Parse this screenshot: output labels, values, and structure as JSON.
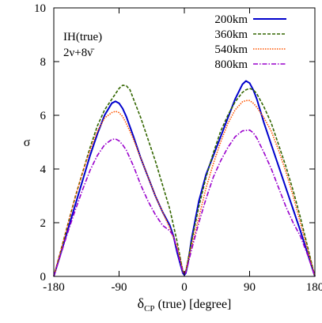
{
  "chart_data": {
    "type": "line",
    "xlabel_main": "δ",
    "xlabel_sub": "CP",
    "xlabel_rest": " (true) [degree]",
    "ylabel": "σ",
    "xlim": [
      -180,
      180
    ],
    "ylim": [
      0,
      10
    ],
    "xticks": [
      -180,
      -90,
      0,
      90,
      180
    ],
    "yticks": [
      0,
      2,
      4,
      6,
      8,
      10
    ],
    "legend_position": "top-right",
    "annotations": [
      "IH(true)",
      "2ν+8ν̄"
    ],
    "series": [
      {
        "name": "200km",
        "color": "#0000cc",
        "style": "solid",
        "x": [
          -180,
          -170,
          -160,
          -150,
          -140,
          -130,
          -120,
          -110,
          -100,
          -95,
          -90,
          -85,
          -80,
          -70,
          -60,
          -50,
          -40,
          -30,
          -20,
          -15,
          -10,
          -5,
          -2,
          0,
          2,
          5,
          10,
          15,
          20,
          30,
          40,
          50,
          60,
          70,
          80,
          85,
          90,
          95,
          100,
          110,
          120,
          130,
          140,
          150,
          160,
          170,
          180
        ],
        "y": [
          0,
          0.9,
          1.8,
          2.7,
          3.6,
          4.5,
          5.3,
          6.0,
          6.45,
          6.52,
          6.45,
          6.25,
          5.95,
          5.2,
          4.4,
          3.7,
          3.0,
          2.4,
          1.9,
          1.5,
          0.9,
          0.4,
          0.12,
          0.05,
          0.12,
          0.5,
          1.4,
          2.1,
          2.8,
          3.8,
          4.5,
          5.2,
          5.9,
          6.6,
          7.15,
          7.28,
          7.2,
          6.95,
          6.6,
          5.7,
          4.9,
          4.1,
          3.3,
          2.5,
          1.7,
          0.85,
          0
        ]
      },
      {
        "name": "360km",
        "color": "#336600",
        "style": "dashed",
        "x": [
          -180,
          -170,
          -160,
          -150,
          -140,
          -130,
          -120,
          -110,
          -100,
          -90,
          -85,
          -80,
          -75,
          -70,
          -60,
          -50,
          -40,
          -30,
          -20,
          -10,
          -5,
          -2,
          0,
          2,
          5,
          10,
          20,
          30,
          40,
          50,
          60,
          70,
          80,
          85,
          90,
          95,
          100,
          110,
          120,
          130,
          140,
          150,
          160,
          170,
          180
        ],
        "y": [
          0,
          1.0,
          2.0,
          3.0,
          3.9,
          4.8,
          5.6,
          6.2,
          6.6,
          7.0,
          7.12,
          7.1,
          6.95,
          6.6,
          5.9,
          5.1,
          4.3,
          3.4,
          2.5,
          1.3,
          0.6,
          0.2,
          0.1,
          0.2,
          0.6,
          1.3,
          2.6,
          3.7,
          4.6,
          5.4,
          6.0,
          6.5,
          6.85,
          6.95,
          7.0,
          6.95,
          6.8,
          6.3,
          5.7,
          4.9,
          4.1,
          3.2,
          2.2,
          1.1,
          0
        ]
      },
      {
        "name": "540km",
        "color": "#ff5500",
        "style": "dotted",
        "x": [
          -180,
          -170,
          -160,
          -150,
          -140,
          -130,
          -120,
          -110,
          -100,
          -95,
          -90,
          -85,
          -80,
          -70,
          -60,
          -50,
          -40,
          -30,
          -20,
          -10,
          -5,
          -2,
          0,
          2,
          5,
          10,
          20,
          30,
          40,
          50,
          60,
          70,
          80,
          85,
          90,
          95,
          100,
          110,
          120,
          130,
          140,
          150,
          160,
          170,
          180
        ],
        "y": [
          0,
          1.0,
          2.0,
          3.0,
          3.9,
          4.7,
          5.4,
          5.9,
          6.1,
          6.15,
          6.1,
          5.95,
          5.7,
          5.1,
          4.4,
          3.7,
          3.0,
          2.4,
          1.8,
          1.1,
          0.55,
          0.2,
          0.1,
          0.2,
          0.55,
          1.1,
          2.2,
          3.3,
          4.2,
          5.0,
          5.7,
          6.2,
          6.5,
          6.55,
          6.55,
          6.45,
          6.3,
          5.9,
          5.4,
          4.7,
          3.9,
          3.0,
          2.0,
          1.0,
          0
        ]
      },
      {
        "name": "800km",
        "color": "#9900cc",
        "style": "dashdot",
        "x": [
          -180,
          -170,
          -160,
          -150,
          -140,
          -130,
          -120,
          -110,
          -100,
          -95,
          -90,
          -85,
          -80,
          -70,
          -60,
          -50,
          -40,
          -30,
          -20,
          -15,
          -10,
          -5,
          -2,
          0,
          2,
          5,
          10,
          20,
          30,
          40,
          50,
          60,
          70,
          80,
          90,
          95,
          100,
          110,
          120,
          130,
          140,
          150,
          160,
          170,
          180
        ],
        "y": [
          0,
          0.85,
          1.7,
          2.5,
          3.25,
          3.95,
          4.5,
          4.9,
          5.1,
          5.12,
          5.05,
          4.9,
          4.7,
          4.1,
          3.4,
          2.8,
          2.3,
          1.9,
          1.7,
          1.5,
          1.0,
          0.45,
          0.15,
          0.08,
          0.15,
          0.45,
          1.0,
          2.0,
          2.9,
          3.7,
          4.3,
          4.8,
          5.2,
          5.42,
          5.45,
          5.35,
          5.15,
          4.6,
          4.0,
          3.3,
          2.6,
          2.0,
          1.5,
          0.8,
          0
        ]
      }
    ]
  }
}
